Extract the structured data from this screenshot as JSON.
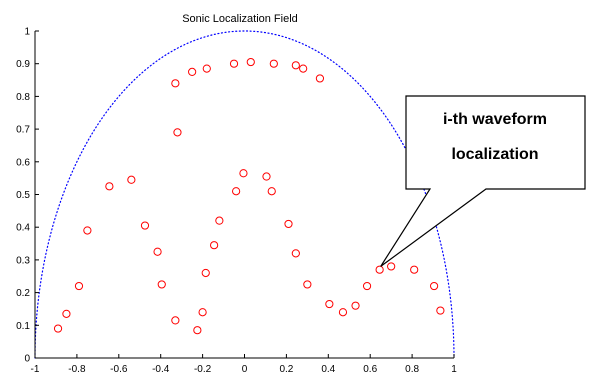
{
  "chart_data": {
    "type": "scatter",
    "title": "Sonic Localization Field",
    "xlabel": "",
    "ylabel": "",
    "xlim": [
      -1,
      1
    ],
    "ylim": [
      0,
      1
    ],
    "x_ticks": [
      "-1",
      "-0.8",
      "-0.6",
      "-0.4",
      "-0.2",
      "0",
      "0.2",
      "0.4",
      "0.6",
      "0.8",
      "1"
    ],
    "y_ticks": [
      "0",
      "0.1",
      "0.2",
      "0.3",
      "0.4",
      "0.5",
      "0.6",
      "0.7",
      "0.8",
      "0.9",
      "1"
    ],
    "grid": false,
    "boundary": {
      "shape": "semicircle",
      "center": [
        0,
        0
      ],
      "radius": 1,
      "style": "dotted",
      "color": "#0000ff"
    },
    "series": [
      {
        "marker": "circle",
        "color": "#ff0000",
        "points": [
          [
            -0.89,
            0.09
          ],
          [
            -0.85,
            0.135
          ],
          [
            -0.79,
            0.22
          ],
          [
            -0.75,
            0.39
          ],
          [
            -0.645,
            0.525
          ],
          [
            -0.54,
            0.545
          ],
          [
            -0.475,
            0.405
          ],
          [
            -0.415,
            0.325
          ],
          [
            -0.395,
            0.225
          ],
          [
            -0.33,
            0.115
          ],
          [
            -0.32,
            0.69
          ],
          [
            -0.33,
            0.84
          ],
          [
            -0.25,
            0.875
          ],
          [
            -0.18,
            0.885
          ],
          [
            -0.225,
            0.085
          ],
          [
            -0.2,
            0.14
          ],
          [
            -0.185,
            0.26
          ],
          [
            -0.145,
            0.345
          ],
          [
            -0.12,
            0.42
          ],
          [
            -0.04,
            0.51
          ],
          [
            -0.05,
            0.9
          ],
          [
            -0.005,
            0.565
          ],
          [
            0.03,
            0.905
          ],
          [
            0.105,
            0.555
          ],
          [
            0.13,
            0.51
          ],
          [
            0.14,
            0.9
          ],
          [
            0.21,
            0.41
          ],
          [
            0.245,
            0.32
          ],
          [
            0.245,
            0.895
          ],
          [
            0.28,
            0.885
          ],
          [
            0.3,
            0.225
          ],
          [
            0.36,
            0.855
          ],
          [
            0.405,
            0.165
          ],
          [
            0.47,
            0.14
          ],
          [
            0.53,
            0.16
          ],
          [
            0.585,
            0.22
          ],
          [
            0.645,
            0.27
          ],
          [
            0.7,
            0.28
          ],
          [
            0.81,
            0.27
          ],
          [
            0.905,
            0.22
          ],
          [
            0.935,
            0.145
          ]
        ]
      }
    ],
    "annotation": {
      "lines": [
        "i-th waveform",
        "localization"
      ],
      "target": [
        0.65,
        0.28
      ]
    }
  }
}
